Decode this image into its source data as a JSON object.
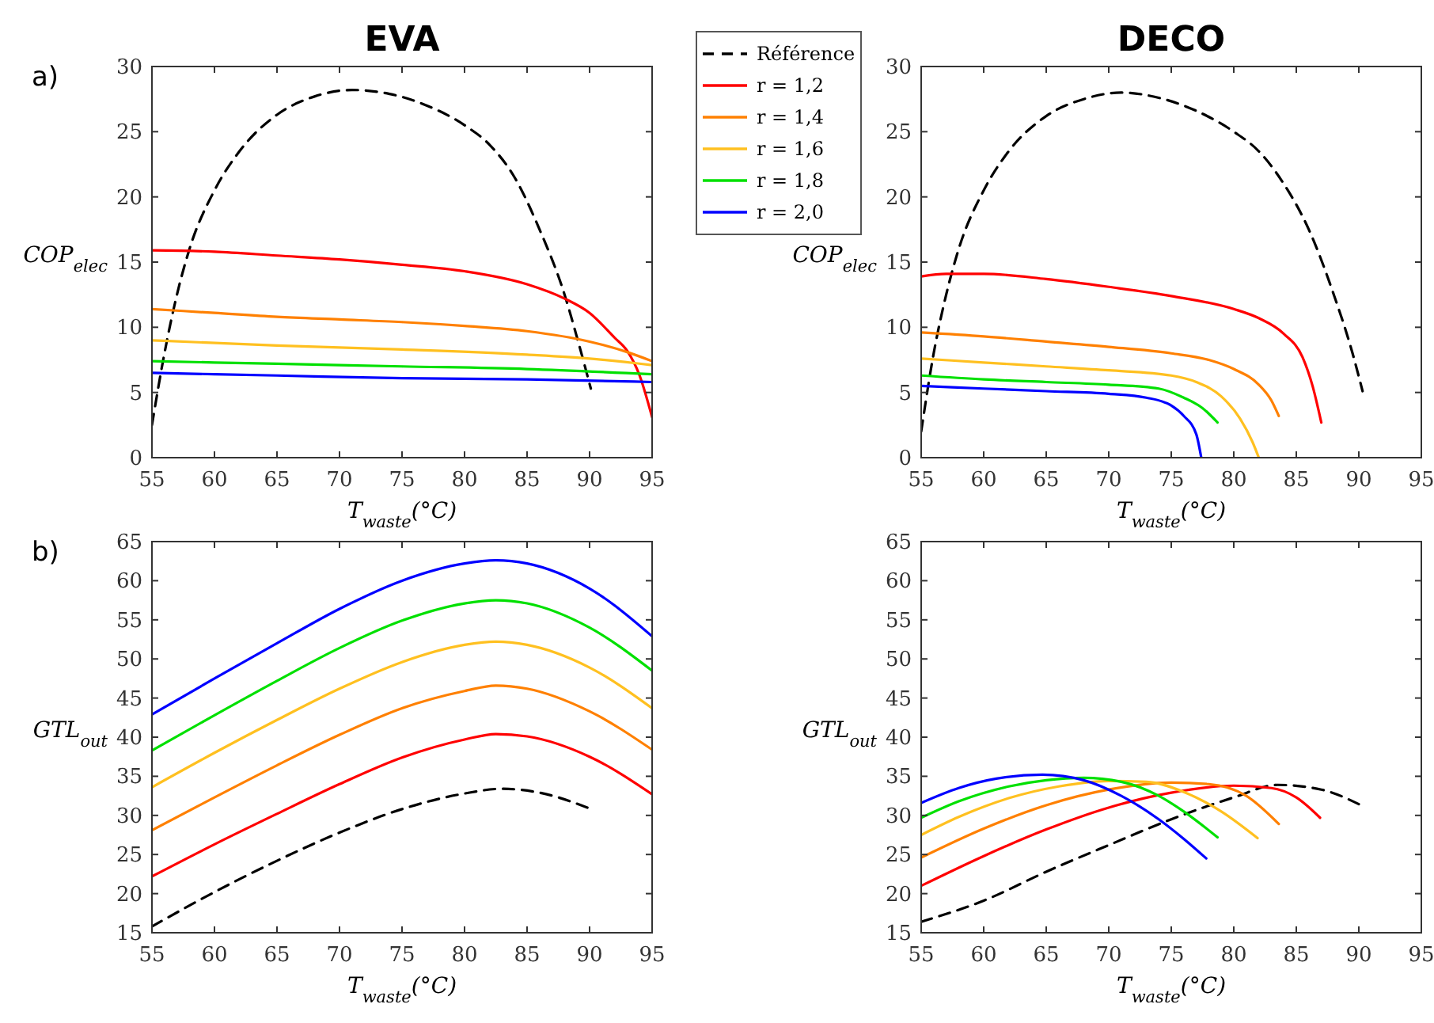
{
  "chart_data": [
    {
      "type": "line",
      "title": "EVA",
      "xlabel": "T$_{waste}$(°C)",
      "ylabel": "COP$_{elec}$",
      "annotations": [
        "a)"
      ],
      "xlim": [
        55,
        95
      ],
      "xticks": [
        55,
        60,
        65,
        70,
        75,
        80,
        85,
        90,
        95
      ],
      "ylim": [
        0,
        30
      ],
      "yticks": [
        0,
        5,
        10,
        15,
        20,
        25,
        30
      ],
      "legend": "right",
      "series": [
        {
          "name": "Référence",
          "color": "#000000",
          "line_style": "dashed",
          "x": [
            55,
            56,
            57,
            58,
            60,
            62,
            65,
            68,
            71,
            74,
            77,
            80,
            82,
            84,
            86,
            88,
            89,
            90.1
          ],
          "values": [
            2.5,
            8,
            12.5,
            16,
            20.5,
            23.5,
            26.3,
            27.7,
            28.2,
            27.9,
            27,
            25.5,
            24,
            21.5,
            17.5,
            12.5,
            9.2,
            5.3
          ]
        },
        {
          "name": "r = 1,2",
          "color": "#ff0000",
          "x": [
            55,
            60,
            65,
            70,
            75,
            80,
            85,
            88,
            90,
            92,
            93,
            94,
            95
          ],
          "values": [
            15.9,
            15.8,
            15.5,
            15.2,
            14.8,
            14.3,
            13.3,
            12.2,
            11.1,
            9.2,
            8.2,
            6.3,
            3.1
          ]
        },
        {
          "name": "r = 1,4",
          "color": "#ff8000",
          "x": [
            55,
            60,
            65,
            70,
            75,
            80,
            85,
            90,
            93,
            95
          ],
          "values": [
            11.4,
            11.1,
            10.8,
            10.6,
            10.4,
            10.1,
            9.7,
            8.9,
            8.1,
            7.4
          ]
        },
        {
          "name": "r = 1,6",
          "color": "#ffc020",
          "x": [
            55,
            65,
            75,
            85,
            90,
            95
          ],
          "values": [
            9.0,
            8.6,
            8.3,
            7.9,
            7.6,
            7.1
          ]
        },
        {
          "name": "r = 1,8",
          "color": "#00e000",
          "x": [
            55,
            65,
            75,
            85,
            95
          ],
          "values": [
            7.4,
            7.2,
            7.0,
            6.8,
            6.4
          ]
        },
        {
          "name": "r = 2,0",
          "color": "#0000ff",
          "x": [
            55,
            65,
            75,
            85,
            95
          ],
          "values": [
            6.5,
            6.3,
            6.1,
            6.0,
            5.8
          ]
        }
      ]
    },
    {
      "type": "line",
      "title": "DECO",
      "xlabel": "T$_{waste}$(°C)",
      "ylabel": "COP$_{elec}$",
      "xlim": [
        55,
        95
      ],
      "xticks": [
        55,
        60,
        65,
        70,
        75,
        80,
        85,
        90,
        95
      ],
      "ylim": [
        0,
        30
      ],
      "yticks": [
        0,
        5,
        10,
        15,
        20,
        25,
        30
      ],
      "series": [
        {
          "color": "#000000",
          "line_style": "dashed",
          "x": [
            55,
            56,
            57,
            58,
            60,
            62,
            65,
            68,
            71,
            74,
            77,
            80,
            82,
            84,
            86,
            88,
            89.5,
            90.3
          ],
          "values": [
            2,
            8,
            12.5,
            16,
            20.5,
            23.5,
            26.2,
            27.5,
            28,
            27.6,
            26.6,
            25,
            23.5,
            21,
            17.5,
            12.5,
            8,
            5.1
          ]
        },
        {
          "color": "#ff0000",
          "x": [
            55,
            57,
            60,
            65,
            70,
            75,
            80,
            82,
            84,
            85.5,
            86.3,
            87
          ],
          "values": [
            13.9,
            14.1,
            14.1,
            13.7,
            13.1,
            12.4,
            11.4,
            10.7,
            9.5,
            7.7,
            5.5,
            2.7
          ]
        },
        {
          "color": "#ff8000",
          "x": [
            55,
            60,
            65,
            70,
            75,
            78,
            80,
            82,
            83,
            83.6
          ],
          "values": [
            9.6,
            9.3,
            8.9,
            8.5,
            8.0,
            7.5,
            6.8,
            5.6,
            4.4,
            3.2
          ]
        },
        {
          "color": "#ffc020",
          "x": [
            55,
            60,
            65,
            70,
            75,
            77,
            79,
            80.5,
            81.5,
            82
          ],
          "values": [
            7.6,
            7.3,
            7.0,
            6.7,
            6.3,
            5.8,
            4.7,
            3.0,
            1.2,
            0
          ]
        },
        {
          "color": "#00e000",
          "x": [
            55,
            60,
            65,
            70,
            74,
            76,
            77.5,
            78.7
          ],
          "values": [
            6.3,
            6.0,
            5.8,
            5.6,
            5.3,
            4.6,
            3.8,
            2.7
          ]
        },
        {
          "color": "#0000ff",
          "x": [
            55,
            60,
            65,
            70,
            73,
            75,
            76,
            77,
            77.4
          ],
          "values": [
            5.5,
            5.3,
            5.1,
            4.9,
            4.6,
            4.0,
            3.2,
            1.8,
            0
          ]
        }
      ]
    },
    {
      "type": "line",
      "xlabel": "T$_{waste}$(°C)",
      "ylabel": "GTL$_{out}$",
      "annotations": [
        "b)"
      ],
      "xlim": [
        55,
        95
      ],
      "xticks": [
        55,
        60,
        65,
        70,
        75,
        80,
        85,
        90,
        95
      ],
      "ylim": [
        15,
        65
      ],
      "yticks": [
        15,
        20,
        25,
        30,
        35,
        40,
        45,
        50,
        55,
        60,
        65
      ],
      "series": [
        {
          "color": "#000000",
          "line_style": "dashed",
          "x": [
            55,
            60,
            65,
            70,
            75,
            80,
            83,
            86,
            90.3
          ],
          "values": [
            15.8,
            20.2,
            24.2,
            27.8,
            30.8,
            32.8,
            33.4,
            32.9,
            30.7
          ]
        },
        {
          "color": "#ff0000",
          "x": [
            55,
            60,
            65,
            70,
            75,
            80,
            82.5,
            85,
            90,
            95
          ],
          "values": [
            22.2,
            26.3,
            30.2,
            34,
            37.4,
            39.7,
            40.4,
            40.1,
            37.5,
            32.7
          ]
        },
        {
          "color": "#ff8000",
          "x": [
            55,
            60,
            65,
            70,
            75,
            80,
            82.5,
            85,
            90,
            95
          ],
          "values": [
            28.1,
            32.3,
            36.4,
            40.3,
            43.7,
            45.9,
            46.6,
            46.2,
            43.3,
            38.4
          ]
        },
        {
          "color": "#ffc020",
          "x": [
            55,
            60,
            65,
            70,
            75,
            80,
            82.5,
            85,
            90,
            95
          ],
          "values": [
            33.6,
            38,
            42.2,
            46.2,
            49.6,
            51.8,
            52.2,
            51.8,
            48.9,
            43.7
          ]
        },
        {
          "color": "#00e000",
          "x": [
            55,
            60,
            65,
            70,
            75,
            80,
            82.5,
            85,
            90,
            95
          ],
          "values": [
            38.3,
            42.8,
            47.2,
            51.4,
            54.9,
            57.1,
            57.5,
            57.1,
            54,
            48.5
          ]
        },
        {
          "color": "#0000ff",
          "x": [
            55,
            60,
            65,
            70,
            75,
            80,
            82.5,
            85,
            90,
            95
          ],
          "values": [
            42.9,
            47.5,
            52,
            56.4,
            60,
            62.2,
            62.6,
            62.2,
            59,
            52.9
          ]
        }
      ]
    },
    {
      "type": "line",
      "xlabel": "T$_{waste}$(°C)",
      "ylabel": "GTL$_{out}$",
      "xlim": [
        55,
        95
      ],
      "xticks": [
        55,
        60,
        65,
        70,
        75,
        80,
        85,
        90,
        95
      ],
      "ylim": [
        15,
        65
      ],
      "yticks": [
        15,
        20,
        25,
        30,
        35,
        40,
        45,
        50,
        55,
        60,
        65
      ],
      "series": [
        {
          "color": "#000000",
          "line_style": "dashed",
          "x": [
            55,
            60,
            65,
            70,
            75,
            80,
            83.5,
            87,
            90.3
          ],
          "values": [
            16.4,
            19.1,
            22.8,
            26.2,
            29.5,
            32.3,
            33.9,
            33.3,
            31.2
          ]
        },
        {
          "color": "#ff0000",
          "x": [
            55,
            60,
            65,
            70,
            75,
            80,
            83,
            85,
            86.9
          ],
          "values": [
            21,
            24.8,
            28.2,
            31,
            32.9,
            33.8,
            33.5,
            32.3,
            29.7
          ]
        },
        {
          "color": "#ff8000",
          "x": [
            55,
            60,
            65,
            70,
            75,
            78,
            81,
            83.6
          ],
          "values": [
            24.6,
            28.3,
            31.3,
            33.3,
            34.2,
            34,
            32.5,
            28.9
          ]
        },
        {
          "color": "#ffc020",
          "x": [
            55,
            58,
            62,
            66,
            70,
            73,
            76,
            79,
            81.9
          ],
          "values": [
            27.5,
            29.8,
            32.2,
            33.7,
            34.4,
            34.3,
            33,
            30.5,
            27.1
          ]
        },
        {
          "color": "#00e000",
          "x": [
            55,
            58,
            62,
            65,
            68,
            71,
            74,
            76,
            78.7
          ],
          "values": [
            29.7,
            31.8,
            33.7,
            34.5,
            34.8,
            34.3,
            32.5,
            30.5,
            27.2
          ]
        },
        {
          "color": "#0000ff",
          "x": [
            55,
            58,
            61,
            64.7,
            68,
            71,
            74,
            76,
            77.8
          ],
          "values": [
            31.6,
            33.5,
            34.7,
            35.2,
            34.5,
            32.5,
            29.5,
            27,
            24.5
          ]
        }
      ]
    }
  ]
}
